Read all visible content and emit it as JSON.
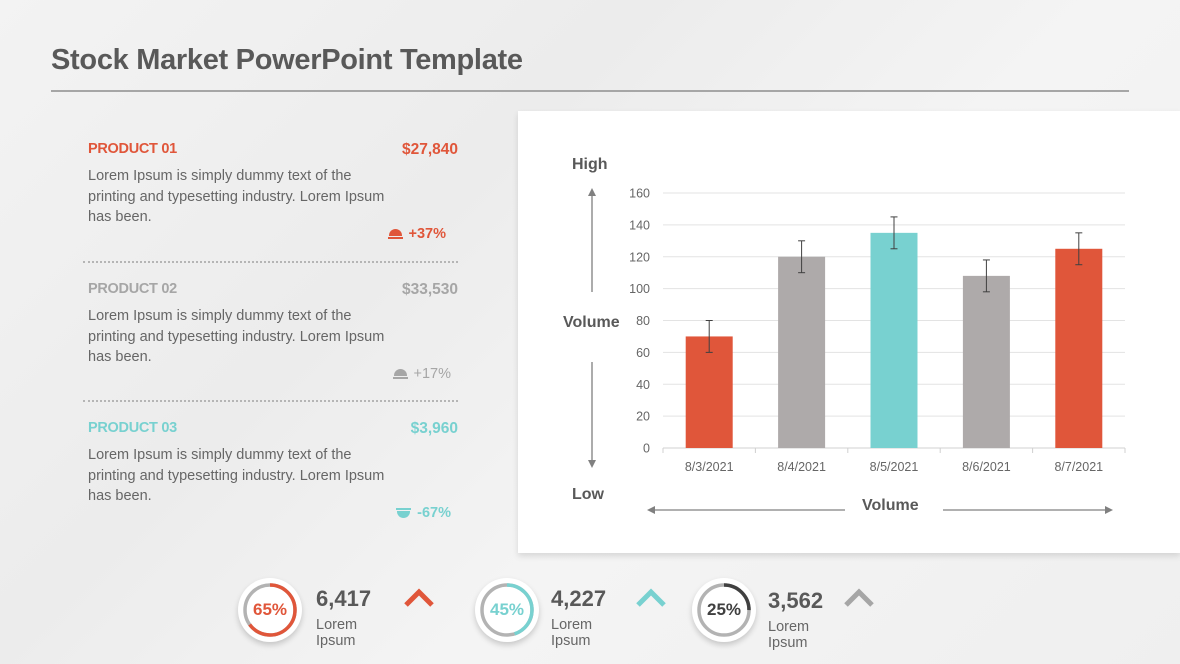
{
  "header": {
    "title": "Stock Market PowerPoint Template"
  },
  "colors": {
    "orange": "#e0563a",
    "gray": "#aeaaaa",
    "teal": "#78d1d0",
    "text": "#595959",
    "light_gray_text": "#a6a6a6"
  },
  "products": [
    {
      "name": "PRODUCT 01",
      "price": "$27,840",
      "description": "Lorem Ipsum is simply dummy text of the printing and typesetting industry. Lorem Ipsum has been.",
      "change": "+37%",
      "direction": "up",
      "color": "#e0563a"
    },
    {
      "name": "PRODUCT 02",
      "price": "$33,530",
      "description": "Lorem Ipsum is simply dummy text of the printing and typesetting industry. Lorem Ipsum has been.",
      "change": "+17%",
      "direction": "up",
      "color": "#a6a6a6"
    },
    {
      "name": "PRODUCT 03",
      "price": "$3,960",
      "description": "Lorem Ipsum is simply dummy text of the printing and typesetting industry. Lorem Ipsum has been.",
      "change": "-67%",
      "direction": "down",
      "color": "#78d1d0"
    }
  ],
  "chart_labels": {
    "high": "High",
    "low": "Low",
    "y_title": "Volume",
    "x_title": "Volume"
  },
  "chart_data": {
    "type": "bar",
    "title": "",
    "xlabel": "Volume",
    "ylabel": "Volume",
    "categories": [
      "8/3/2021",
      "8/4/2021",
      "8/5/2021",
      "8/6/2021",
      "8/7/2021"
    ],
    "values": [
      70,
      120,
      135,
      108,
      125
    ],
    "error_bars": [
      10,
      10,
      10,
      10,
      10
    ],
    "bar_colors": [
      "#e0563a",
      "#aeaaaa",
      "#78d1d0",
      "#aeaaaa",
      "#e0563a"
    ],
    "ylim": [
      0,
      160
    ],
    "yticks": [
      0,
      20,
      40,
      60,
      80,
      100,
      120,
      140,
      160
    ],
    "grid": true,
    "legend": "none",
    "annotations": [
      "High (top arrow)",
      "Low (bottom arrow)"
    ]
  },
  "kpis": [
    {
      "percent": "65%",
      "pct_value": 65,
      "value": "6,417",
      "label": "Lorem Ipsum",
      "color": "#e0563a",
      "trend": "up"
    },
    {
      "percent": "45%",
      "pct_value": 45,
      "value": "4,227",
      "label": "Lorem Ipsum",
      "color": "#78d1d0",
      "trend": "up"
    },
    {
      "percent": "25%",
      "pct_value": 25,
      "value": "3,562",
      "label": "Lorem Ipsum",
      "color": "#404040",
      "trend": "up",
      "chevron_color": "#a6a6a6"
    }
  ]
}
